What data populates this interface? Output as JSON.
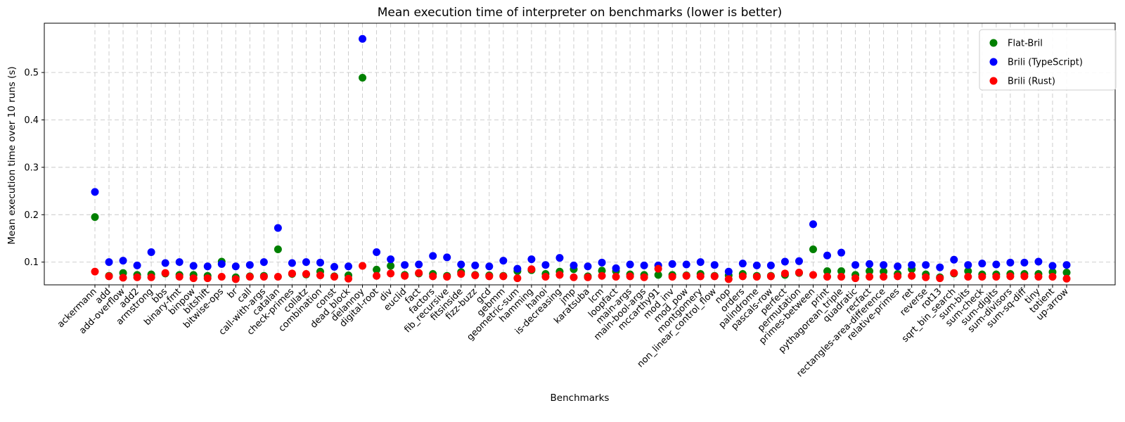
{
  "chart_data": {
    "type": "scatter",
    "title": "Mean execution time of interpreter on benchmarks (lower is better)",
    "xlabel": "Benchmarks",
    "ylabel": "Mean execution time over 10 runs (s)",
    "grid": true,
    "legend_position": "upper right",
    "marker": "circle",
    "background_color": "#ffffff",
    "grid_color": "#c8c8c8",
    "yticks": [
      0.1,
      0.2,
      0.3,
      0.4,
      0.5
    ],
    "ylim": [
      0.052,
      0.604
    ],
    "categories": [
      "ackermann",
      "add",
      "add-overflow",
      "add2",
      "armstrong",
      "bbs",
      "binary-fmt",
      "binpow",
      "bitshift",
      "bitwise-ops",
      "br",
      "call",
      "call-with-args",
      "catalan",
      "check-primes",
      "collatz",
      "combination",
      "const",
      "dead_block",
      "delannoy",
      "digital-root",
      "div",
      "euclid",
      "fact",
      "factors",
      "fib_recursive",
      "fitsinside",
      "fizz-buzz",
      "gcd",
      "gebmm",
      "geometric-sum",
      "hamming",
      "hanoi",
      "is-decreasing",
      "jmp",
      "karatsuba",
      "lcm",
      "loopfact",
      "main-args",
      "main-bool-args",
      "mccarthy91",
      "mod_inv",
      "mod_pow",
      "montgomery",
      "non_linear_control_flow",
      "nop",
      "orders",
      "palindrome",
      "pascals-row",
      "perfect",
      "permutation",
      "primes-between",
      "print",
      "pythagorean_triple",
      "quadratic",
      "recfact",
      "rectangles-area-difference",
      "relative-primes",
      "ret",
      "reverse",
      "rot13",
      "sqrt_bin_search",
      "sum-bits",
      "sum-check",
      "sum-digits",
      "sum-divisors",
      "sum-sq-diff",
      "tiny",
      "totient",
      "up-arrow"
    ],
    "series": [
      {
        "name": "Flat-Bril",
        "color": "#008000",
        "values": [
          0.195,
          0.071,
          0.077,
          0.073,
          0.074,
          0.076,
          0.073,
          0.073,
          0.071,
          0.101,
          0.068,
          0.07,
          0.071,
          0.127,
          0.075,
          0.074,
          0.08,
          0.07,
          0.072,
          0.489,
          0.084,
          0.092,
          0.073,
          0.076,
          0.075,
          0.071,
          0.079,
          0.073,
          0.072,
          0.071,
          0.081,
          0.083,
          0.075,
          0.08,
          0.085,
          0.07,
          0.082,
          0.081,
          0.074,
          0.073,
          0.073,
          0.073,
          0.072,
          0.075,
          0.071,
          0.072,
          0.075,
          0.071,
          0.071,
          0.073,
          0.077,
          0.127,
          0.081,
          0.081,
          0.073,
          0.081,
          0.08,
          0.075,
          0.085,
          0.074,
          0.068,
          0.076,
          0.081,
          0.074,
          0.074,
          0.075,
          0.075,
          0.075,
          0.079,
          0.078
        ]
      },
      {
        "name": "Brili (TypeScript)",
        "color": "#0000ff",
        "values": [
          0.248,
          0.1,
          0.103,
          0.093,
          0.121,
          0.098,
          0.1,
          0.092,
          0.091,
          0.096,
          0.091,
          0.094,
          0.1,
          0.172,
          0.098,
          0.1,
          0.099,
          0.09,
          0.091,
          0.571,
          0.121,
          0.106,
          0.094,
          0.095,
          0.113,
          0.11,
          0.095,
          0.093,
          0.091,
          0.103,
          0.086,
          0.106,
          0.094,
          0.109,
          0.093,
          0.091,
          0.099,
          0.087,
          0.095,
          0.093,
          0.093,
          0.096,
          0.095,
          0.1,
          0.094,
          0.08,
          0.097,
          0.093,
          0.093,
          0.101,
          0.102,
          0.18,
          0.114,
          0.12,
          0.094,
          0.096,
          0.094,
          0.091,
          0.094,
          0.094,
          0.089,
          0.105,
          0.094,
          0.097,
          0.095,
          0.099,
          0.099,
          0.101,
          0.092,
          0.094
        ]
      },
      {
        "name": "Brili (Rust)",
        "color": "#ff0000",
        "values": [
          0.08,
          0.07,
          0.067,
          0.068,
          0.068,
          0.077,
          0.069,
          0.066,
          0.066,
          0.069,
          0.064,
          0.069,
          0.069,
          0.069,
          0.076,
          0.075,
          0.072,
          0.069,
          0.065,
          0.092,
          0.071,
          0.076,
          0.071,
          0.077,
          0.07,
          0.069,
          0.075,
          0.072,
          0.07,
          0.07,
          0.066,
          0.085,
          0.069,
          0.073,
          0.068,
          0.068,
          0.071,
          0.069,
          0.07,
          0.068,
          0.086,
          0.069,
          0.071,
          0.07,
          0.07,
          0.064,
          0.07,
          0.069,
          0.07,
          0.076,
          0.078,
          0.073,
          0.069,
          0.069,
          0.066,
          0.069,
          0.069,
          0.07,
          0.071,
          0.068,
          0.066,
          0.077,
          0.069,
          0.069,
          0.069,
          0.07,
          0.07,
          0.069,
          0.069,
          0.065
        ]
      }
    ]
  }
}
